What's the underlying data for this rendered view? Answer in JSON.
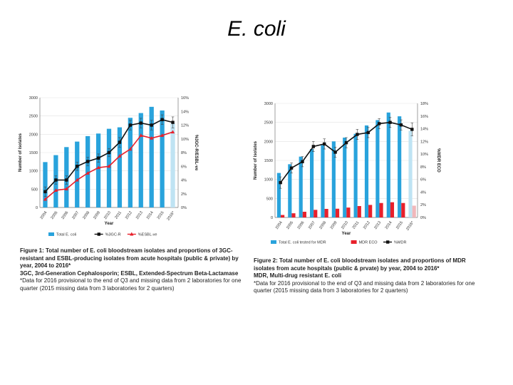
{
  "slide": {
    "title": "E. coli"
  },
  "chart_data": [
    {
      "type": "bar",
      "categories": [
        "2004",
        "2005",
        "2006",
        "2007",
        "2008",
        "2009",
        "2010",
        "2011",
        "2012",
        "2013",
        "2014",
        "2015",
        "2016*"
      ],
      "xlabel": "Year",
      "ylabel": "Number of isolates",
      "y2label": "%3GC-R/ESBL-ve",
      "ylim": [
        0,
        3000
      ],
      "yticks": [
        "0",
        "500",
        "1000",
        "1500",
        "2000",
        "2500",
        "3000"
      ],
      "y2lim": [
        0,
        16
      ],
      "y2ticks": [
        "0%",
        "2%",
        "4%",
        "6%",
        "8%",
        "10%",
        "12%",
        "14%",
        "16%"
      ],
      "grid": true,
      "legend_position": "bottom",
      "colors": {
        "bars": "#29a3dc",
        "bar_provisional": "#bfe3f3",
        "line1": "#111111",
        "line2": "#e8202b"
      },
      "series": [
        {
          "name": "Total E. coli",
          "kind": "bar",
          "values": [
            1240,
            1430,
            1650,
            1800,
            1950,
            2020,
            2150,
            2190,
            2450,
            2580,
            2750,
            2650,
            2300
          ]
        },
        {
          "name": "%3GC-R",
          "kind": "line",
          "axis": "right",
          "values": [
            2.3,
            4.0,
            4.0,
            6.0,
            6.7,
            7.2,
            8.0,
            9.5,
            12.0,
            12.3,
            12.0,
            12.8,
            12.4
          ],
          "errors": [
            0.7,
            0.6,
            0.6,
            0.6,
            0.6,
            0.6,
            0.6,
            0.7,
            0.7,
            0.7,
            0.7,
            0.7,
            0.8
          ]
        },
        {
          "name": "%ESBL-ve",
          "kind": "line",
          "axis": "right",
          "values": [
            1.2,
            2.5,
            2.7,
            4.0,
            5.0,
            5.8,
            6.0,
            7.5,
            8.5,
            10.5,
            10.1,
            10.5,
            11.0
          ]
        }
      ],
      "caption": {
        "main": "Figure 1: Total number of E. coli bloodstream isolates and proportions of 3GC-resistant and ESBL-producing isolates from acute hospitals (public & private) by year, 2004 to 2016*",
        "abbrev": "3GC, 3rd-Generation Cephalosporin; ESBL, Extended-Spectrum Beta-Lactamase",
        "note": "*Data for 2016 provisional to the end of Q3 and missing data from 2 laboratories for one quarter (2015 missing data from 3 laboratories for 2 quarters)"
      }
    },
    {
      "type": "bar",
      "categories": [
        "2004",
        "2005",
        "2006",
        "2007",
        "2008",
        "2009",
        "2010",
        "2011",
        "2012",
        "2013",
        "2014",
        "2015",
        "2016*"
      ],
      "xlabel": "Year",
      "ylabel": "Number of isolates",
      "y2label": "%MDR ECO",
      "ylim": [
        0,
        3000
      ],
      "yticks": [
        "0",
        "500",
        "1000",
        "1500",
        "2000",
        "2500",
        "3000"
      ],
      "y2lim": [
        0,
        18
      ],
      "y2ticks": [
        "0%",
        "2%",
        "4%",
        "6%",
        "8%",
        "10%",
        "12%",
        "14%",
        "16%",
        "18%"
      ],
      "grid": true,
      "legend_position": "bottom",
      "colors": {
        "bars": "#29a3dc",
        "bar_provisional": "#bfe3f3",
        "bars2": "#e8202b",
        "line1": "#111111"
      },
      "series": [
        {
          "name": "Total E. coli tested for MDR",
          "kind": "bar",
          "values": [
            1170,
            1400,
            1600,
            1800,
            1900,
            2000,
            2100,
            2200,
            2420,
            2560,
            2760,
            2660,
            2280
          ]
        },
        {
          "name": "MDR ECO",
          "kind": "bar",
          "values": [
            65,
            110,
            150,
            200,
            225,
            230,
            260,
            300,
            330,
            380,
            400,
            380,
            310
          ]
        },
        {
          "name": "%MDR",
          "kind": "line",
          "axis": "right",
          "values": [
            5.5,
            7.8,
            8.8,
            11.2,
            11.6,
            10.3,
            11.8,
            13.1,
            13.4,
            14.8,
            15.0,
            14.6,
            13.9
          ],
          "errors": [
            0.9,
            0.8,
            0.8,
            0.8,
            0.8,
            0.8,
            0.8,
            0.8,
            0.8,
            0.8,
            0.8,
            0.8,
            1.0
          ]
        }
      ],
      "caption": {
        "main": "Figure 2: Total number of E. coli bloodstream isolates and proportions of MDR isolates from acute hospitals (public & prvate) by year, 2004 to 2016*",
        "abbrev": "MDR, Multi-drug resistant E. coli",
        "note": "*Data for 2016 provisional to the end of Q3 and missing data from 2 laboratories for one quarter (2015 missing data from 3 laboratories for 2 quarters)"
      }
    }
  ]
}
